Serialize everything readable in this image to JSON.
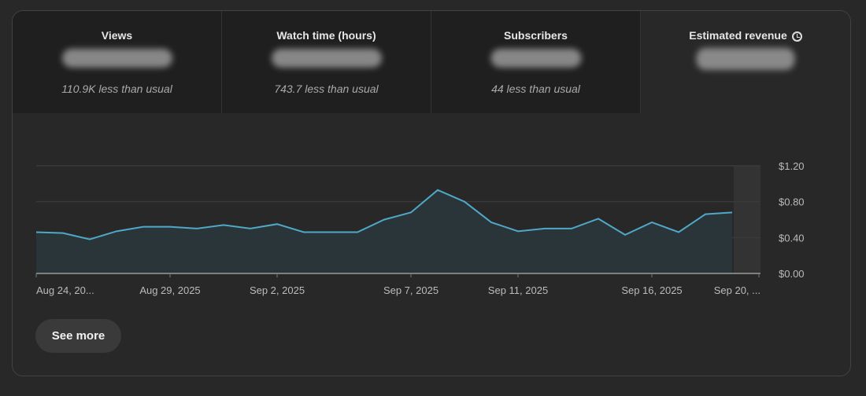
{
  "tabs": [
    {
      "label": "Views",
      "comparison": "110.9K less than usual"
    },
    {
      "label": "Watch time (hours)",
      "comparison": "743.7 less than usual"
    },
    {
      "label": "Subscribers",
      "comparison": "44 less than usual"
    },
    {
      "label": "Estimated revenue",
      "icon": "clock-icon"
    }
  ],
  "see_more_label": "See more",
  "colors": {
    "line": "#4fa8c7",
    "fill": "#2a3539",
    "grid": "#3a3a3a"
  },
  "chart_data": {
    "type": "area",
    "title": "Estimated revenue",
    "x": [
      "Aug 24",
      "Aug 25",
      "Aug 26",
      "Aug 27",
      "Aug 28",
      "Aug 29",
      "Aug 30",
      "Aug 31",
      "Sep 1",
      "Sep 2",
      "Sep 3",
      "Sep 4",
      "Sep 5",
      "Sep 6",
      "Sep 7",
      "Sep 8",
      "Sep 9",
      "Sep 10",
      "Sep 11",
      "Sep 12",
      "Sep 13",
      "Sep 14",
      "Sep 15",
      "Sep 16",
      "Sep 17",
      "Sep 18",
      "Sep 19",
      "Sep 20"
    ],
    "values": [
      0.46,
      0.45,
      0.38,
      0.47,
      0.52,
      0.52,
      0.5,
      0.54,
      0.5,
      0.55,
      0.46,
      0.46,
      0.46,
      0.6,
      0.68,
      0.93,
      0.8,
      0.57,
      0.47,
      0.5,
      0.5,
      0.61,
      0.43,
      0.57,
      0.46,
      0.66,
      0.68,
      null
    ],
    "x_ticks": [
      {
        "index": 0,
        "label": "Aug 24, 20..."
      },
      {
        "index": 5,
        "label": "Aug 29, 2025"
      },
      {
        "index": 9,
        "label": "Sep 2, 2025"
      },
      {
        "index": 14,
        "label": "Sep 7, 2025"
      },
      {
        "index": 18,
        "label": "Sep 11, 2025"
      },
      {
        "index": 23,
        "label": "Sep 16, 2025"
      },
      {
        "index": 27,
        "label": "Sep 20, ..."
      }
    ],
    "y_ticks": [
      {
        "value": 0,
        "label": "$0.00"
      },
      {
        "value": 0.4,
        "label": "$0.40"
      },
      {
        "value": 0.8,
        "label": "$0.80"
      },
      {
        "value": 1.2,
        "label": "$1.20"
      }
    ],
    "ylim": [
      0,
      1.2
    ],
    "grid": true,
    "xlabel": "",
    "ylabel": ""
  }
}
